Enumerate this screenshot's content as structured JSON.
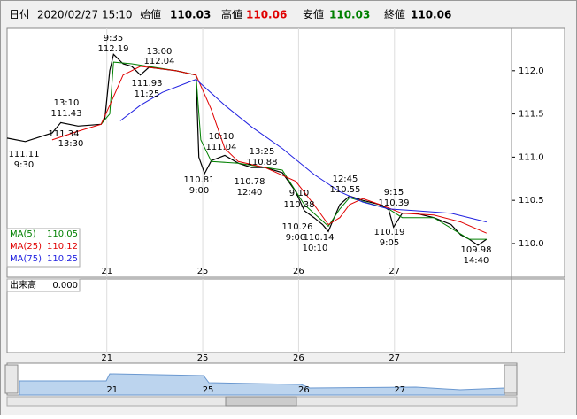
{
  "chart_data": {
    "type": "line",
    "header": {
      "date_label": "日付",
      "date": "2020/02/27 15:10",
      "open_label": "始値",
      "open": "110.03",
      "high_label": "高値",
      "high": "110.06",
      "low_label": "安値",
      "low": "110.03",
      "close_label": "終値",
      "close": "110.06"
    },
    "ylim": [
      109.61,
      112.49
    ],
    "yticks": [
      {
        "value": 110,
        "label": "110.0"
      },
      110.5,
      {
        "value": 111,
        "label": "111.0"
      },
      111.5,
      {
        "value": 112,
        "label": "112.0"
      }
    ],
    "xlim": [
      -0.04,
      5.22
    ],
    "xticks": [
      {
        "value": 1,
        "label": "21"
      },
      {
        "value": 2,
        "label": "25"
      },
      {
        "value": 3,
        "label": "26"
      },
      {
        "value": 4,
        "label": "27"
      }
    ],
    "grid": true,
    "series": [
      {
        "name": null,
        "color": "#000000",
        "x": [
          -0.04,
          0.15,
          0.43,
          0.52,
          0.7,
          0.94,
          0.98,
          1.03,
          1.07,
          1.17,
          1.26,
          1.35,
          1.44,
          1.58,
          1.72,
          1.93,
          1.96,
          2.02,
          2.09,
          2.23,
          2.37,
          2.51,
          2.65,
          2.83,
          2.97,
          3.06,
          3.16,
          3.25,
          3.31,
          3.37,
          3.43,
          3.53,
          3.67,
          3.85,
          3.94,
          3.99,
          4.08,
          4.22,
          4.41,
          4.59,
          4.69,
          4.78,
          4.87,
          4.96
        ],
        "values": [
          111.22,
          111.18,
          111.28,
          111.4,
          111.36,
          111.38,
          111.45,
          112.0,
          112.19,
          112.08,
          112.05,
          111.95,
          112.04,
          112.02,
          112.0,
          111.95,
          111.0,
          110.81,
          110.96,
          111.02,
          110.93,
          110.88,
          110.88,
          110.82,
          110.6,
          110.38,
          110.3,
          110.22,
          110.14,
          110.3,
          110.45,
          110.55,
          110.5,
          110.45,
          110.39,
          110.19,
          110.35,
          110.35,
          110.3,
          110.22,
          110.1,
          110.05,
          109.98,
          110.05
        ]
      },
      {
        "name": "MA(5)",
        "color": "#008000",
        "last": "110.05",
        "x": [
          0.94,
          1.03,
          1.07,
          1.26,
          1.72,
          1.93,
          1.98,
          2.09,
          2.37,
          2.83,
          3.06,
          3.31,
          3.43,
          3.53,
          3.94,
          4.08,
          4.41,
          4.78,
          4.96
        ],
        "values": [
          111.38,
          111.5,
          112.1,
          112.08,
          112.0,
          111.95,
          111.2,
          110.95,
          110.93,
          110.85,
          110.45,
          110.2,
          110.4,
          110.53,
          110.4,
          110.3,
          110.3,
          110.05,
          110.05
        ]
      },
      {
        "name": "MA(25)",
        "color": "#e00000",
        "last": "110.12",
        "x": [
          0.43,
          0.7,
          0.94,
          1.03,
          1.17,
          1.35,
          1.72,
          1.93,
          2.09,
          2.23,
          2.37,
          2.65,
          2.97,
          3.16,
          3.31,
          3.43,
          3.53,
          3.67,
          3.85,
          4.08,
          4.41,
          4.69,
          4.96
        ],
        "values": [
          111.2,
          111.3,
          111.38,
          111.6,
          111.95,
          112.05,
          112.0,
          111.95,
          111.55,
          111.1,
          110.95,
          110.88,
          110.72,
          110.45,
          110.22,
          110.3,
          110.45,
          110.52,
          110.45,
          110.35,
          110.33,
          110.25,
          110.12
        ]
      },
      {
        "name": "MA(75)",
        "color": "#2020e0",
        "last": "110.25",
        "x": [
          1.14,
          1.35,
          1.58,
          1.93,
          2.23,
          2.51,
          2.83,
          3.16,
          3.43,
          3.67,
          3.94,
          4.22,
          4.59,
          4.96
        ],
        "values": [
          111.42,
          111.6,
          111.75,
          111.9,
          111.6,
          111.35,
          111.1,
          110.8,
          110.6,
          110.48,
          110.4,
          110.38,
          110.35,
          110.25
        ]
      }
    ],
    "annotations": [
      "9:35",
      "112.19",
      "13:00",
      "112.04",
      "111.93",
      "11:25",
      "13:10",
      "111.43",
      "111.34",
      "13:30",
      "111.11",
      "9:30",
      "10:10",
      "111.04",
      "13:25",
      "110.88",
      "110.81",
      "9:00",
      "110.78",
      "12:40",
      "9:10",
      "110.38",
      "12:45",
      "110.55",
      "9:15",
      "110.39",
      "110.26",
      "9:00",
      "110.14",
      "10:10",
      "110.19",
      "9:05",
      "109.98",
      "14:40"
    ],
    "volume": {
      "label": "出来高",
      "value": "0.000"
    }
  }
}
